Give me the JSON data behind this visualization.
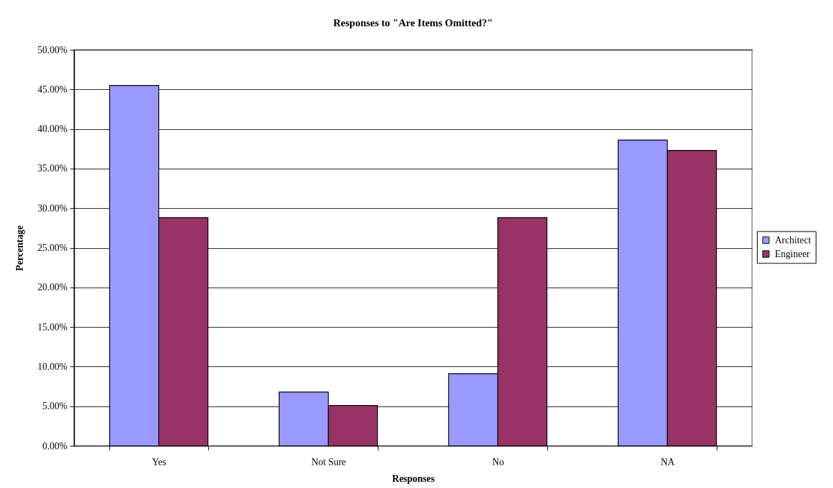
{
  "chart_data": {
    "type": "bar",
    "title": "Responses to \"Are Items Omitted?\"",
    "xlabel": "Responses",
    "ylabel": "Percentage",
    "categories": [
      "Yes",
      "Not Sure",
      "No",
      "NA"
    ],
    "series": [
      {
        "name": "Architect",
        "color": "#9999ff",
        "values": [
          45.5,
          6.8,
          9.1,
          38.6
        ]
      },
      {
        "name": "Engineer",
        "color": "#993366",
        "values": [
          28.8,
          5.1,
          28.8,
          37.3
        ]
      }
    ],
    "ylim": [
      0,
      50
    ],
    "yticks": [
      {
        "value": 0,
        "label": "0.00%"
      },
      {
        "value": 5,
        "label": "5.00%"
      },
      {
        "value": 10,
        "label": "10.00%"
      },
      {
        "value": 15,
        "label": "15.00%"
      },
      {
        "value": 20,
        "label": "20.00%"
      },
      {
        "value": 25,
        "label": "25.00%"
      },
      {
        "value": 30,
        "label": "30.00%"
      },
      {
        "value": 35,
        "label": "35.00%"
      },
      {
        "value": 40,
        "label": "40.00%"
      },
      {
        "value": 45,
        "label": "45.00%"
      },
      {
        "value": 50,
        "label": "50.00%"
      }
    ],
    "grid": "y",
    "legend": "right"
  }
}
